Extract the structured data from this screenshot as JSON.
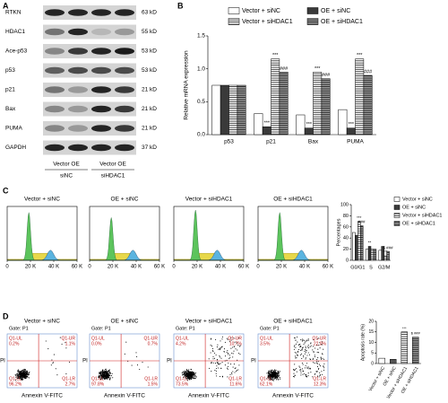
{
  "blot": {
    "panel": "A",
    "proteins": [
      "RTKN",
      "HDAC1",
      "Ace-p53",
      "p53",
      "p21",
      "Bax",
      "PUMA",
      "GAPDH"
    ],
    "sizes": [
      "63 kD",
      "55 kD",
      "53 kD",
      "53 kD",
      "21 kD",
      "21 kD",
      "21 kD",
      "37 kD"
    ],
    "lanes": [
      "Vector OE",
      "Vector OE"
    ],
    "groups": [
      "siNC",
      "siHDAC1"
    ]
  },
  "chart_data": [
    {
      "type": "bar",
      "panel": "B",
      "ylabel": "Relative mRNA expression",
      "categories": [
        "p53",
        "p21",
        "Bax",
        "PUMA"
      ],
      "series": [
        {
          "name": "Vector + siNC",
          "color": "#ffffff",
          "hatch": false,
          "values": [
            0.75,
            0.32,
            0.3,
            0.38
          ],
          "significance": [
            null,
            null,
            null,
            null
          ]
        },
        {
          "name": "OE + siNC",
          "color": "#3a3a3a",
          "hatch": false,
          "values": [
            0.75,
            0.12,
            0.1,
            0.1
          ],
          "significance": [
            null,
            "***",
            "***",
            "***"
          ]
        },
        {
          "name": "Vector + siHDAC1",
          "color": "#ffffff",
          "hatch": true,
          "values": [
            0.75,
            1.15,
            0.95,
            1.15
          ],
          "significance": [
            null,
            "***",
            "***",
            "***"
          ]
        },
        {
          "name": "OE + siHDAC1",
          "color": "#9a9a9a",
          "hatch": true,
          "values": [
            0.75,
            0.95,
            0.85,
            0.9
          ],
          "significance": [
            null,
            "###",
            "###",
            "###"
          ]
        }
      ],
      "ylim": [
        0,
        1.5
      ],
      "yticks": [
        {
          "value": 0,
          "label": "0.0"
        },
        {
          "value": 0.5,
          "label": "0.5"
        },
        {
          "value": 1,
          "label": "1.0"
        },
        {
          "value": 1.5,
          "label": "1.5"
        }
      ],
      "legend": "top"
    },
    {
      "type": "bar",
      "ylabel": "Percentages",
      "categories": [
        "G0/G1",
        "S",
        "G2/M"
      ],
      "series": [
        {
          "name": "Vector + siNC",
          "color": "#ffffff",
          "hatch": false,
          "values": [
            50,
            20,
            18
          ],
          "significance": [
            null,
            null,
            null
          ]
        },
        {
          "name": "OE + siNC",
          "color": "#3a3a3a",
          "hatch": false,
          "values": [
            45,
            25,
            25
          ],
          "significance": [
            null,
            "**",
            null
          ]
        },
        {
          "name": "Vector + siHDAC1",
          "color": "#ffffff",
          "hatch": true,
          "values": [
            70,
            20,
            8
          ],
          "significance": [
            "***",
            null,
            "***"
          ]
        },
        {
          "name": "OE + siHDAC1",
          "color": "#9a9a9a",
          "hatch": true,
          "values": [
            62,
            20,
            16
          ],
          "significance": [
            "###",
            null,
            "$ ###"
          ]
        }
      ],
      "ylim": [
        0,
        100
      ],
      "yticks": [
        0,
        20,
        40,
        60,
        80,
        100
      ],
      "legend": "right"
    },
    {
      "type": "bar",
      "ylabel": "Apoptosis rate (%)",
      "categories": [
        "Vector + siNC",
        "OE + siNC",
        "Vector + siHDAC1",
        "OE + siHDAC1"
      ],
      "values": [
        2.5,
        2,
        15,
        12.5
      ],
      "colors": [
        "#ffffff",
        "#555555",
        "#ffffff",
        "#9a9a9a"
      ],
      "hatch": [
        false,
        false,
        true,
        true
      ],
      "significance": [
        null,
        null,
        "***",
        "$ ###"
      ],
      "ylim": [
        0,
        20
      ],
      "yticks": [
        0,
        5,
        10,
        15,
        20
      ],
      "rotated_labels": true
    }
  ],
  "histograms": {
    "panel": "C",
    "titles": [
      "Vector + siNC",
      "OE + siNC",
      "Vector + siHDAC1",
      "OE + siHDAC1"
    ],
    "xticks": [
      "0",
      "20 K",
      "40 K",
      "60 K"
    ]
  },
  "scatter": {
    "panel": "D",
    "titles": [
      "Vector + siNC",
      "OE + siNC",
      "Vector + siHDAC1",
      "OE + siHDAC1"
    ],
    "gate": "Gate: P1",
    "xlabel": "Annexin V-FITC",
    "ylabel": "PI",
    "quadrants": [
      [
        {
          "name": "Q1-UL",
          "value": "0.2%"
        },
        {
          "name": "Q1-UR",
          "value": "1.1%"
        },
        {
          "name": "Q1-LL",
          "value": "96.2%"
        },
        {
          "name": "Q1-LR",
          "value": "2.7%"
        }
      ],
      [
        {
          "name": "Q1-UL",
          "value": "0.0%"
        },
        {
          "name": "Q1-UR",
          "value": "0.7%"
        },
        {
          "name": "Q1-LL",
          "value": "97.8%"
        },
        {
          "name": "Q1-LR",
          "value": "1.5%"
        }
      ],
      [
        {
          "name": "Q1-UL",
          "value": "4.2%"
        },
        {
          "name": "Q1-UR",
          "value": "10.7%"
        },
        {
          "name": "Q1-LL",
          "value": "73.5%"
        },
        {
          "name": "Q1-LR",
          "value": "11.6%"
        }
      ],
      [
        {
          "name": "Q1-UL",
          "value": "3.5%"
        },
        {
          "name": "Q1-UR",
          "value": "22.0%"
        },
        {
          "name": "Q1-LL",
          "value": "62.1%"
        },
        {
          "name": "Q1-LR",
          "value": "12.3%"
        }
      ]
    ]
  }
}
